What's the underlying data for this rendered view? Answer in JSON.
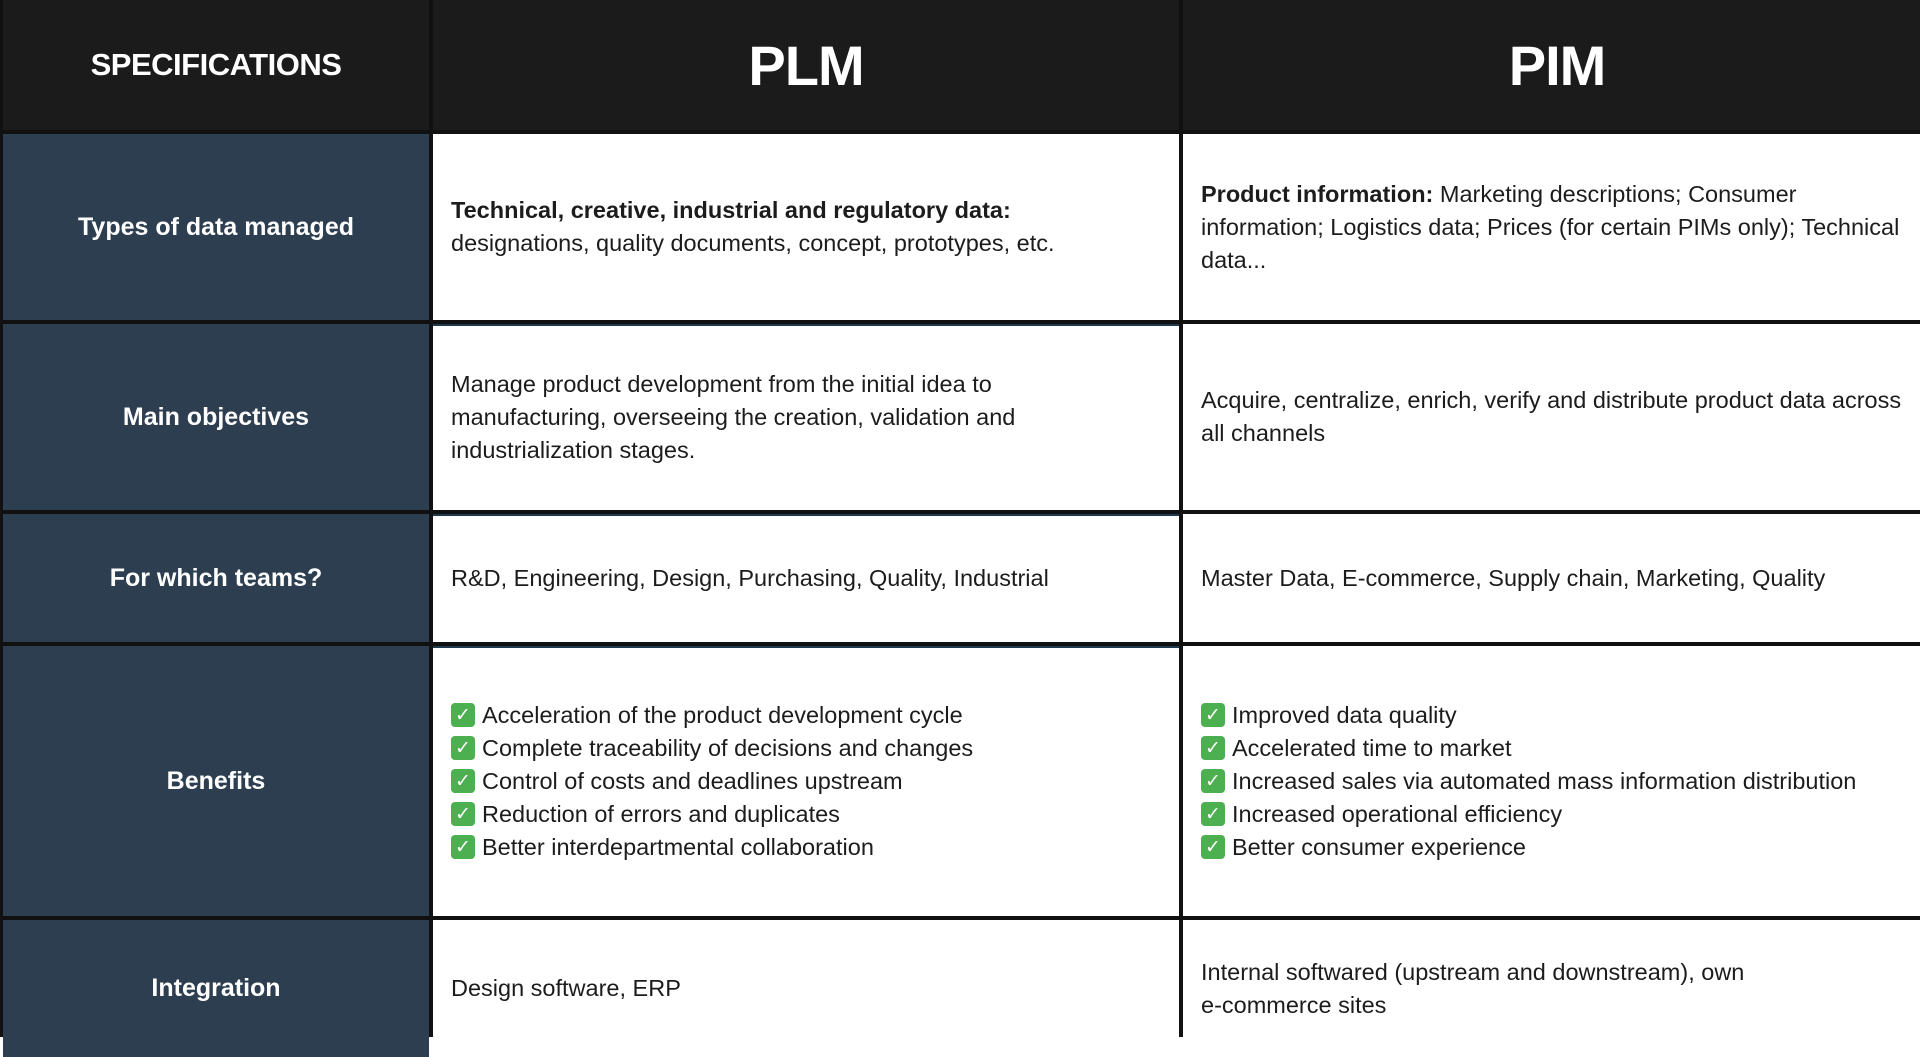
{
  "header": {
    "specifications": "SPECIFICATIONS",
    "plm": "PLM",
    "pim": "PIM"
  },
  "rows": {
    "types": {
      "label": "Types of data managed",
      "plm_bold": "Technical, creative, industrial and regulatory data:",
      "plm_text": "designations, quality documents, concept, prototypes, etc.",
      "pim_bold": "Product information:",
      "pim_text": " Marketing descriptions; Consumer information; Logistics data; Prices (for certain PIMs only); Technical data..."
    },
    "objectives": {
      "label": "Main objectives",
      "plm_text": "Manage product development from the initial idea to manufacturing, overseeing the creation, validation and industrialization stages.",
      "pim_text": "Acquire, centralize, enrich, verify and distribute product data across all channels"
    },
    "teams": {
      "label": "For which teams?",
      "plm_text": "R&D, Engineering, Design, Purchasing, Quality, Industrial",
      "pim_text": "Master Data, E-commerce, Supply chain, Marketing, Quality"
    },
    "benefits": {
      "label": "Benefits",
      "plm_items": [
        "Acceleration of the product development cycle",
        "Complete traceability of decisions and changes",
        "Control of costs and deadlines upstream",
        "Reduction of errors and duplicates",
        "Better interdepartmental collaboration"
      ],
      "pim_items": [
        "Improved data quality",
        "Accelerated time to market",
        "Increased sales via automated mass information distribution",
        "Increased operational efficiency",
        "Better consumer experience"
      ],
      "check_glyph": "✓",
      "check_icon": "check-box-icon",
      "check_color": "#4caf50"
    },
    "integration": {
      "label": "Integration",
      "plm_text": "Design software, ERP",
      "pim_line1": "Internal softwared (upstream and downstream), own",
      "pim_line2": "e-commerce sites"
    }
  },
  "colors": {
    "header_bg": "#1b1b1b",
    "label_bg": "#2c3e50",
    "border": "#111111"
  }
}
